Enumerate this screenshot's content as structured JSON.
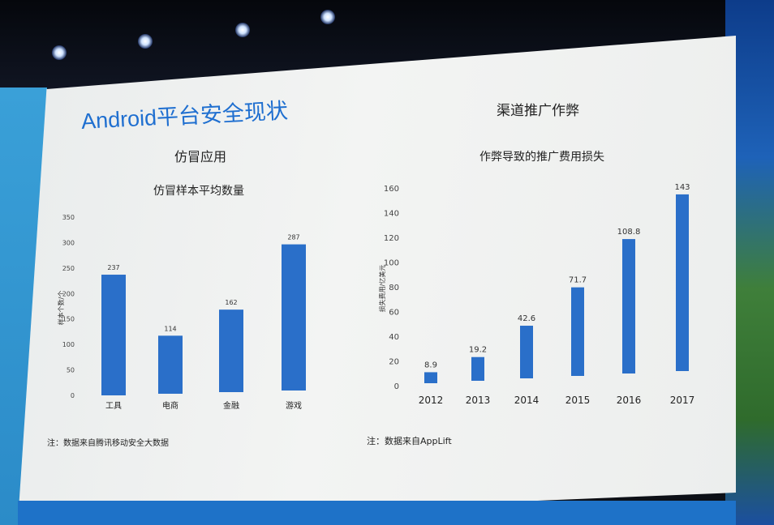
{
  "slide": {
    "title": "Android平台安全现状",
    "left": {
      "section_title": "仿冒应用",
      "note": "注：数据来自腾讯移动安全大数据"
    },
    "right": {
      "section_title": "渠道推广作弊",
      "note": "注：数据来自AppLift"
    }
  },
  "colors": {
    "bar": "#2a6fc9",
    "title": "#1f6fd0",
    "bottom_bar": "#1e72c8"
  },
  "chart_data": [
    {
      "type": "bar",
      "title": "仿冒样本平均数量",
      "ylabel": "样本个数/个",
      "categories": [
        "工具",
        "电商",
        "金融",
        "游戏"
      ],
      "values": [
        237,
        114,
        162,
        287
      ],
      "ylim": [
        0,
        350
      ],
      "yticks": [
        0,
        50,
        100,
        150,
        200,
        250,
        300,
        350
      ],
      "grid": false
    },
    {
      "type": "bar",
      "title": "作弊导致的推广费用损失",
      "ylabel": "损失费用/亿美元",
      "categories": [
        "2012",
        "2013",
        "2014",
        "2015",
        "2016",
        "2017"
      ],
      "values": [
        8.9,
        19.2,
        42.6,
        71.7,
        108.8,
        143
      ],
      "ylim": [
        0,
        160
      ],
      "yticks": [
        0,
        20,
        40,
        60,
        80,
        100,
        120,
        140,
        160
      ],
      "grid": false
    }
  ]
}
